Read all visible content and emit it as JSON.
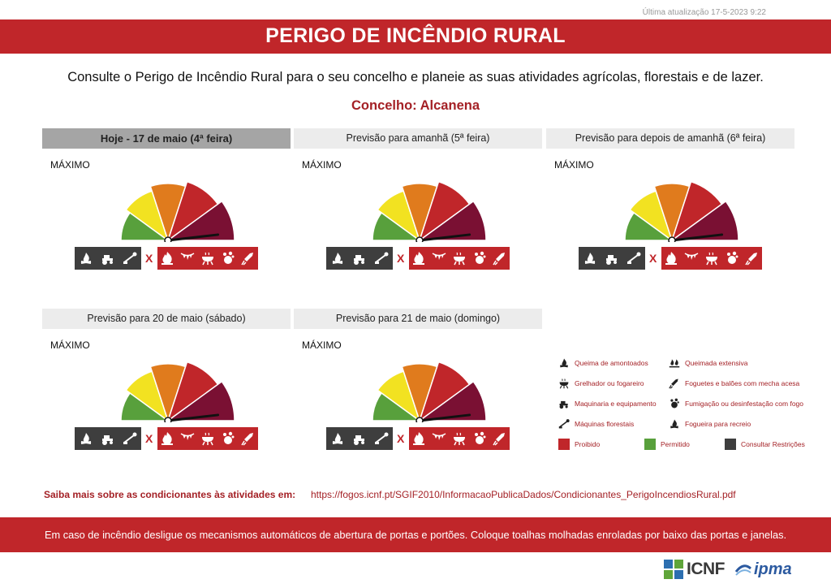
{
  "updated": "Última atualização 17-5-2023 9:22",
  "banner_title": "PERIGO DE INCÊNDIO RURAL",
  "subtitle": "Consulte o Perigo de Incêndio Rural para o seu concelho e planeie as suas atividades agrícolas, florestais e de lazer.",
  "concelho": "Concelho: Alcanena",
  "gauge_colors": [
    "#58a03c",
    "#f2e221",
    "#e07b1d",
    "#c0262a",
    "#7a1033"
  ],
  "gauge_level": 5,
  "days": [
    {
      "header": "Hoje - 17 de maio (4ª feira)",
      "active": true,
      "level": "MÁXIMO"
    },
    {
      "header": "Previsão para amanhã (5ª feira)",
      "active": false,
      "level": "MÁXIMO"
    },
    {
      "header": "Previsão para depois de amanhã (6ª feira)",
      "active": false,
      "level": "MÁXIMO"
    },
    {
      "header": "Previsão para 20 de maio (sábado)",
      "active": false,
      "level": "MÁXIMO"
    },
    {
      "header": "Previsão para 21 de maio (domingo)",
      "active": false,
      "level": "MÁXIMO"
    }
  ],
  "icon_groups": {
    "restricted": [
      "campfire-icon",
      "tractor-icon",
      "forestry-machine-icon"
    ],
    "separator": "X",
    "prohibited": [
      "fire-icon",
      "bunting-icon",
      "grill-icon",
      "fumigation-icon",
      "rocket-icon"
    ]
  },
  "legend": {
    "items": [
      {
        "label": "Queima de amontoados",
        "icon": "pile-burning-icon"
      },
      {
        "label": "Queimada extensiva",
        "icon": "extensive-burning-icon"
      },
      {
        "label": "Grelhador ou fogareiro",
        "icon": "grill-icon"
      },
      {
        "label": "Foguetes e balões com mecha acesa",
        "icon": "rocket-icon"
      },
      {
        "label": "Maquinaria e equipamento",
        "icon": "tractor-icon"
      },
      {
        "label": "Fumigação ou desinfestação com fogo",
        "icon": "fumigation-icon"
      },
      {
        "label": "Máquinas florestais",
        "icon": "forestry-machine-icon"
      },
      {
        "label": "Fogueira para recreio",
        "icon": "campfire-icon"
      }
    ],
    "status": [
      {
        "label": "Proibido",
        "color": "#c0262a"
      },
      {
        "label": "Permitido",
        "color": "#58a03c"
      },
      {
        "label": "Consultar Restrições",
        "color": "#3e3e3e"
      }
    ]
  },
  "more_info": {
    "label": "Saiba mais sobre as condicionantes às atividades em:",
    "url": "https://fogos.icnf.pt/SGIF2010/InformacaoPublicaDados/Condicionantes_PerigoIncendiosRural.pdf"
  },
  "footer_message": "Em caso de incêndio desligue os mecanismos automáticos de abertura de portas e portões. Coloque toalhas molhadas enroladas por baixo das portas e janelas.",
  "logos": {
    "icnf": "ICNF",
    "ipma": "ipma"
  }
}
